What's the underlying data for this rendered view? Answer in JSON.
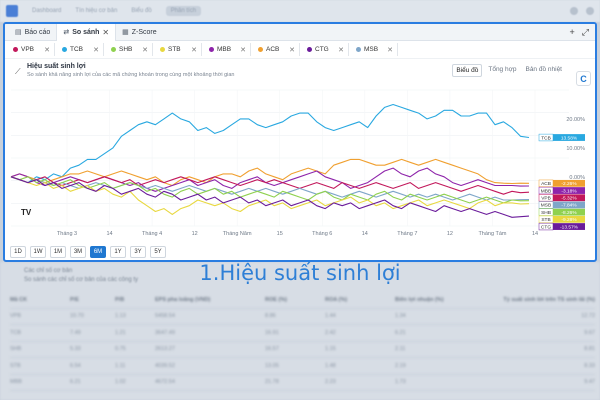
{
  "bg_app": {
    "nav": [
      "Dashboard",
      "Tín hiệu cơ bản",
      "Biểu đồ",
      "Phân tích"
    ],
    "panel_title": "Các chỉ số cơ bản",
    "panel_sub": "So sánh các chỉ số cơ bản của các công ty",
    "table_header": [
      "Mã CK",
      "P/E",
      "P/B",
      "EPS pha loãng (VND)",
      "ROE (%)",
      "ROA (%)",
      "Biên lợi nhuận (%)",
      "Tỷ suất sinh lời trên TS sinh lãi (%)"
    ],
    "table_rows": [
      [
        "VPB",
        "10.70",
        "1.13",
        "5458.54",
        "8.86",
        "1.44",
        "1.34",
        "12.72"
      ],
      [
        "TCB",
        "7.49",
        "1.21",
        "3647.49",
        "16.91",
        "2.42",
        "6.21",
        "9.67"
      ],
      [
        "SHB",
        "5.33",
        "0.75",
        "2613.27",
        "16.57",
        "1.15",
        "2.11",
        "8.81"
      ],
      [
        "STB",
        "6.54",
        "1.11",
        "4039.52",
        "13.05",
        "1.48",
        "2.19",
        "8.33"
      ],
      [
        "MBB",
        "6.21",
        "1.02",
        "4672.54",
        "21.78",
        "2.23",
        "1.73",
        "9.47"
      ]
    ]
  },
  "tabs": [
    {
      "label": "Báo cáo",
      "icon": "report-icon"
    },
    {
      "label": "So sánh",
      "icon": "compare-icon",
      "active": true
    },
    {
      "label": "Z-Score",
      "icon": "chart-icon"
    }
  ],
  "tab_actions": {
    "add": "+",
    "expand": "⤢"
  },
  "chips": [
    {
      "label": "VPB",
      "color": "#c2185b"
    },
    {
      "label": "TCB",
      "color": "#29a8e0"
    },
    {
      "label": "SHB",
      "color": "#8fd14f"
    },
    {
      "label": "STB",
      "color": "#e8d840"
    },
    {
      "label": "MBB",
      "color": "#8e24aa"
    },
    {
      "label": "ACB",
      "color": "#f0a030"
    },
    {
      "label": "CTG",
      "color": "#6a1b9a"
    },
    {
      "label": "MSB",
      "color": "#7fa6c9"
    }
  ],
  "panel": {
    "title": "Hiệu suất sinh lợi",
    "subtitle": "So sánh khả năng sinh lợi của các mã chứng khoán trong cùng một khoảng thời gian",
    "views": [
      "Biểu đồ",
      "Tổng hợp",
      "Bản đồ nhiệt"
    ],
    "active_view": 0,
    "logo": "C"
  },
  "ranges": [
    "1D",
    "1W",
    "1M",
    "3M",
    "6M",
    "1Y",
    "3Y",
    "5Y"
  ],
  "active_range": "6M",
  "caption": "1.Hiệu suất sinh lợi",
  "chart_data": {
    "type": "line",
    "title": "Hiệu suất sinh lợi",
    "x_labels": [
      "Tháng 3",
      "14",
      "Tháng 4",
      "12",
      "Tháng Năm",
      "15",
      "Tháng 6",
      "14",
      "Tháng 7",
      "12",
      "Tháng Tám",
      "14"
    ],
    "y_ticks": [
      "20.00%",
      "10.00%",
      "0.00%"
    ],
    "ylim": [
      -17,
      30
    ],
    "grid": true,
    "watermark": "TV",
    "series": [
      {
        "name": "TCB",
        "color": "#29a8e0",
        "end_label": "13.58%",
        "values": [
          0,
          -1,
          -2,
          0,
          -1,
          1,
          0,
          3,
          4,
          6,
          6,
          8,
          10,
          14,
          16,
          18,
          19,
          18,
          20,
          22,
          20,
          19,
          16,
          17,
          15,
          16,
          18,
          20,
          20,
          18,
          17,
          18,
          19,
          21,
          22,
          22,
          19,
          17,
          16,
          17,
          18,
          19,
          17,
          21,
          24,
          25,
          24,
          23,
          22,
          20,
          21,
          23,
          23,
          21,
          21,
          22,
          22,
          18,
          19,
          17,
          14,
          13.58
        ]
      },
      {
        "name": "ACB",
        "color": "#f0a030",
        "end_label": "-2.26%",
        "values": [
          0,
          1,
          0,
          -1,
          -2,
          -1,
          0,
          1,
          1,
          2,
          1,
          0,
          1,
          2,
          1,
          0,
          -1,
          0,
          -2,
          -3,
          -1,
          0,
          -1,
          -2,
          0,
          1,
          1,
          0,
          2,
          3,
          1,
          0,
          -1,
          1,
          2,
          3,
          2,
          1,
          4,
          5,
          6,
          6,
          5,
          4,
          4,
          5,
          6,
          5,
          4,
          5,
          6,
          5,
          4,
          3,
          2,
          1,
          -1,
          -2,
          -2.2,
          -2.3,
          -2.2,
          -2.26
        ]
      },
      {
        "name": "MBB",
        "color": "#8e24aa",
        "end_label": "-3.18%",
        "values": [
          0,
          1,
          0,
          -2,
          -3,
          -2,
          -1,
          0,
          -1,
          -2,
          -1,
          0,
          -1,
          -2,
          -3,
          -2,
          -4,
          -5,
          -4,
          -3,
          -2,
          -1,
          -3,
          -2,
          -1,
          -3,
          -4,
          -2,
          -1,
          0,
          -2,
          -3,
          -2,
          -1,
          0,
          1,
          2,
          0,
          -1,
          -2,
          -4,
          -3,
          -2,
          0,
          2,
          3,
          1,
          0,
          2,
          3,
          1,
          0,
          -2,
          -3,
          -2,
          -1,
          -2,
          -3,
          -3,
          -3,
          -3.2,
          -3.18
        ]
      },
      {
        "name": "VPB",
        "color": "#c2185b",
        "end_label": "-5.32%",
        "values": [
          0,
          -1,
          -2,
          -1,
          0,
          -2,
          -3,
          -2,
          -1,
          -2,
          -1,
          0,
          -1,
          -2,
          -1,
          -3,
          -2,
          -1,
          -2,
          -1,
          0,
          -1,
          -2,
          -1,
          0,
          -1,
          -2,
          -3,
          -2,
          -1,
          -2,
          -1,
          -2,
          -3,
          -4,
          -3,
          -2,
          -3,
          -4,
          -2,
          -3,
          -4,
          -3,
          -2,
          -3,
          -4,
          -3,
          -2,
          -4,
          -3,
          -2,
          -3,
          -4,
          -5,
          -4,
          -3,
          -4,
          -5,
          -6,
          -5,
          -5.5,
          -5.32
        ]
      },
      {
        "name": "MSB",
        "color": "#7fa6c9",
        "end_label": "-7.84%",
        "values": [
          0,
          -1,
          -2,
          -1,
          -2,
          -3,
          -2,
          -3,
          -4,
          -3,
          -2,
          -3,
          -4,
          -3,
          -2,
          -3,
          -4,
          -3,
          -4,
          -5,
          -4,
          -3,
          -4,
          -5,
          -4,
          -5,
          -6,
          -5,
          -4,
          -5,
          -4,
          -5,
          -6,
          -5,
          -4,
          -5,
          -6,
          -5,
          -6,
          -7,
          -6,
          -5,
          -6,
          -7,
          -6,
          -5,
          -6,
          -7,
          -6,
          -7,
          -6,
          -7,
          -8,
          -7,
          -6,
          -7,
          -8,
          -7,
          -8,
          -8,
          -7.9,
          -7.84
        ]
      },
      {
        "name": "SHB",
        "color": "#8fd14f",
        "end_label": "-8.26%",
        "values": [
          0,
          -1,
          0,
          -2,
          -1,
          -3,
          -2,
          -1,
          -3,
          -4,
          -3,
          -2,
          -4,
          -3,
          -2,
          -3,
          -5,
          -4,
          -6,
          -7,
          -5,
          -4,
          -6,
          -5,
          -4,
          -6,
          -5,
          -7,
          -6,
          -5,
          -6,
          -7,
          -5,
          -6,
          -7,
          -8,
          -6,
          -5,
          -7,
          -8,
          -6,
          -7,
          -8,
          -6,
          -5,
          -7,
          -8,
          -6,
          -7,
          -8,
          -7,
          -6,
          -7,
          -8,
          -9,
          -8,
          -7,
          -8,
          -9,
          -8,
          -8.3,
          -8.26
        ]
      },
      {
        "name": "STB",
        "color": "#e8d840",
        "end_label": "-9.28%",
        "values": [
          0,
          -1,
          -2,
          -3,
          -2,
          -4,
          -3,
          -5,
          -4,
          -3,
          -5,
          -4,
          -6,
          -7,
          -5,
          -8,
          -10,
          -12,
          -11,
          -13,
          -11,
          -10,
          -8,
          -9,
          -10,
          -9,
          -11,
          -12,
          -10,
          -9,
          -8,
          -10,
          -9,
          -11,
          -10,
          -9,
          -8,
          -10,
          -9,
          -8,
          -7,
          -9,
          -8,
          -10,
          -9,
          -11,
          -10,
          -9,
          -8,
          -10,
          -9,
          -8,
          -9,
          -10,
          -11,
          -9,
          -8,
          -10,
          -9,
          -9,
          -9.4,
          -9.28
        ]
      },
      {
        "name": "CTG",
        "color": "#6a1b9a",
        "end_label": "-13.57%",
        "values": [
          0,
          -1,
          -2,
          -1,
          -3,
          -2,
          -4,
          -3,
          -2,
          -4,
          -5,
          -3,
          -4,
          -6,
          -5,
          -4,
          -6,
          -7,
          -5,
          -6,
          -8,
          -7,
          -6,
          -8,
          -7,
          -9,
          -8,
          -7,
          -9,
          -8,
          -10,
          -9,
          -8,
          -10,
          -9,
          -8,
          -10,
          -11,
          -9,
          -10,
          -9,
          -11,
          -10,
          -9,
          -8,
          -10,
          -11,
          -9,
          -10,
          -11,
          -12,
          -10,
          -11,
          -12,
          -11,
          -12,
          -13,
          -12,
          -13,
          -14,
          -13.8,
          -13.57
        ]
      }
    ]
  }
}
